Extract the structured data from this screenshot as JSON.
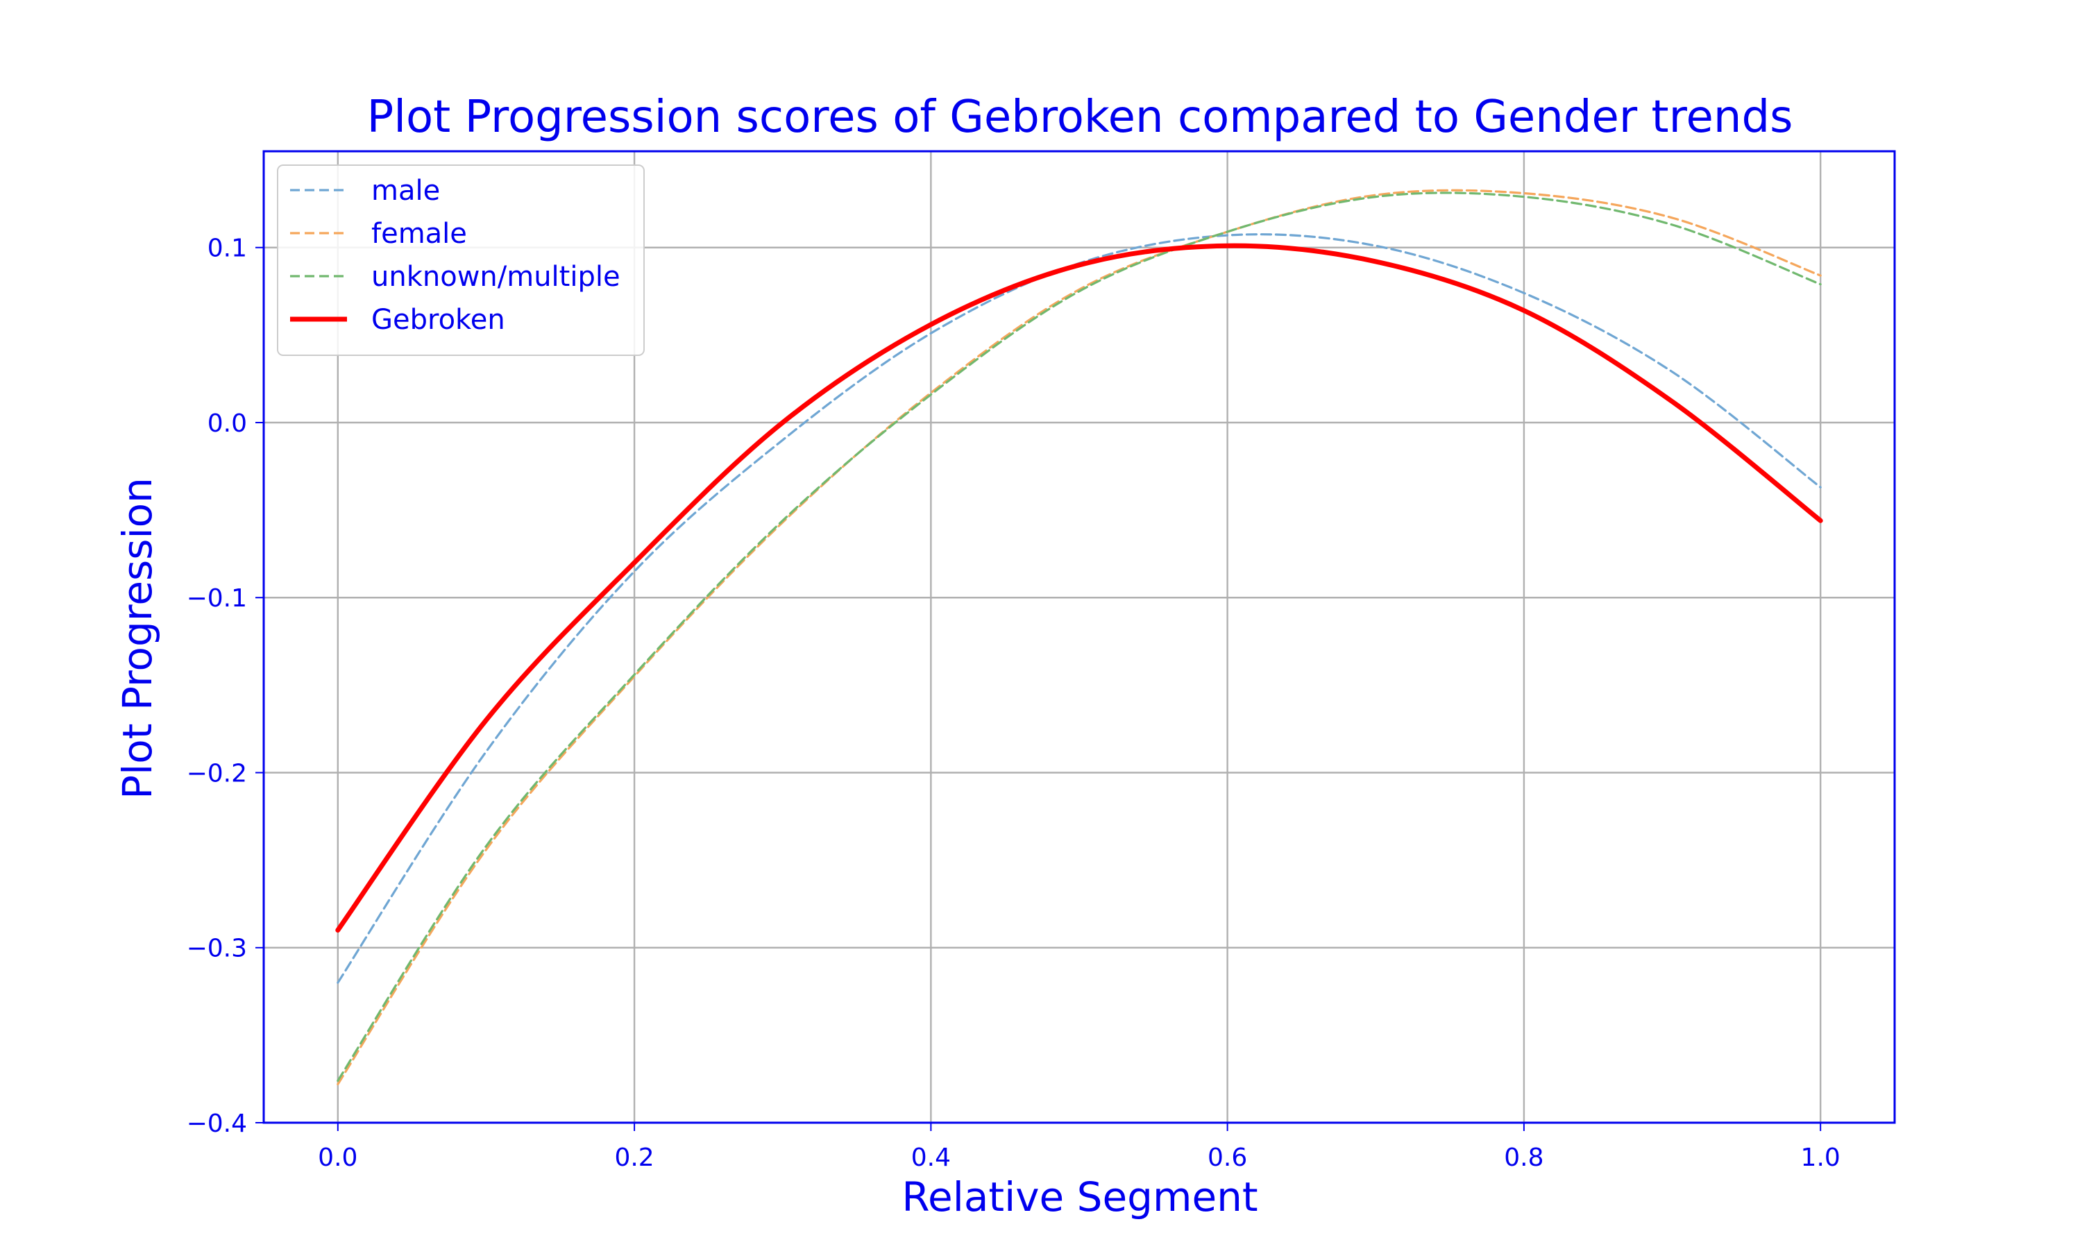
{
  "chart_data": {
    "type": "line",
    "title": "Plot Progression scores of Gebroken compared to Gender trends",
    "xlabel": "Relative Segment",
    "ylabel": "Plot Progression",
    "xlim": [
      -0.05,
      1.05
    ],
    "ylim": [
      -0.4,
      0.155
    ],
    "xticks": [
      0.0,
      0.2,
      0.4,
      0.6,
      0.8,
      1.0
    ],
    "xtick_labels": [
      "0.0",
      "0.2",
      "0.4",
      "0.6",
      "0.8",
      "1.0"
    ],
    "yticks": [
      -0.4,
      -0.3,
      -0.2,
      -0.1,
      0.0,
      0.1
    ],
    "ytick_labels": [
      "−0.4",
      "−0.3",
      "−0.2",
      "−0.1",
      "0.0",
      "0.1"
    ],
    "grid": true,
    "legend_position": "upper-left",
    "text_color": "#0000ee",
    "series": [
      {
        "name": "male",
        "color": "#6fa6d3",
        "style": "dashed",
        "x": [
          0.0,
          0.1,
          0.2,
          0.3,
          0.4,
          0.5,
          0.6,
          0.7,
          0.8,
          0.9,
          1.0
        ],
        "y": [
          -0.32,
          -0.188,
          -0.085,
          -0.01,
          0.051,
          0.091,
          0.107,
          0.101,
          0.074,
          0.029,
          -0.037
        ]
      },
      {
        "name": "female",
        "color": "#f5a65b",
        "style": "dashed",
        "x": [
          0.0,
          0.1,
          0.2,
          0.3,
          0.4,
          0.5,
          0.6,
          0.7,
          0.8,
          0.9,
          1.0
        ],
        "y": [
          -0.378,
          -0.244,
          -0.145,
          -0.057,
          0.017,
          0.076,
          0.109,
          0.13,
          0.131,
          0.117,
          0.084
        ]
      },
      {
        "name": "unknown/multiple",
        "color": "#70b86e",
        "style": "dashed",
        "x": [
          0.0,
          0.1,
          0.2,
          0.3,
          0.4,
          0.5,
          0.6,
          0.7,
          0.8,
          0.9,
          1.0
        ],
        "y": [
          -0.376,
          -0.242,
          -0.144,
          -0.056,
          0.016,
          0.075,
          0.109,
          0.129,
          0.129,
          0.113,
          0.079
        ]
      },
      {
        "name": "Gebroken",
        "color": "#ff0000",
        "style": "solid",
        "x": [
          0.0,
          0.1,
          0.2,
          0.3,
          0.4,
          0.5,
          0.6,
          0.7,
          0.8,
          0.9,
          1.0
        ],
        "y": [
          -0.29,
          -0.17,
          -0.08,
          0.0,
          0.056,
          0.09,
          0.101,
          0.092,
          0.064,
          0.012,
          -0.056
        ]
      }
    ]
  }
}
